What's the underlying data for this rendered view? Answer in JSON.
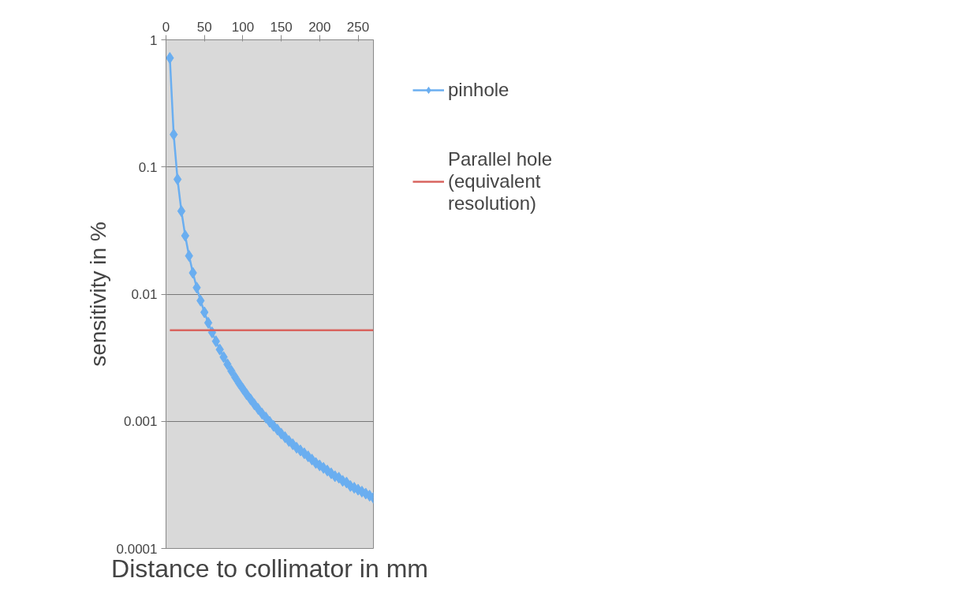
{
  "chart_data": {
    "type": "line",
    "xlabel": "Distance to collimator in mm",
    "ylabel": "sensitivity in %",
    "xlim": [
      0,
      270
    ],
    "xticks": [
      0,
      50,
      100,
      150,
      200,
      250
    ],
    "ylim": [
      0.0001,
      1
    ],
    "yticks": [
      0.0001,
      0.001,
      0.01,
      0.1,
      1
    ],
    "log": "y",
    "grid": "y",
    "legend": "right",
    "marker": "diamond",
    "line_style": "solid",
    "series": [
      {
        "name": "pinhole",
        "color": "#6aaef0",
        "x": [
          5,
          10,
          15,
          20,
          25,
          30,
          35,
          40,
          45,
          50,
          55,
          60,
          65,
          70,
          75,
          80,
          85,
          90,
          95,
          100,
          105,
          110,
          115,
          120,
          125,
          130,
          135,
          140,
          145,
          150,
          155,
          160,
          165,
          170,
          175,
          180,
          185,
          190,
          195,
          200,
          205,
          210,
          215,
          220,
          225,
          230,
          235,
          240,
          245,
          250,
          255,
          260,
          265,
          270
        ],
        "values": [
          0.72,
          0.18,
          0.08,
          0.045,
          0.0288,
          0.02,
          0.0147,
          0.01125,
          0.00889,
          0.0072,
          0.00595,
          0.005,
          0.00426,
          0.00367,
          0.0032,
          0.00281,
          0.00249,
          0.00222,
          0.00199,
          0.0018,
          0.00163,
          0.00149,
          0.00136,
          0.00125,
          0.00115,
          0.00107,
          0.00099,
          0.00092,
          0.00086,
          0.0008,
          0.00075,
          0.0007,
          0.00066,
          0.00062,
          0.00059,
          0.00056,
          0.00053,
          0.0005,
          0.00047,
          0.00045,
          0.00043,
          0.00041,
          0.00039,
          0.00037,
          0.00036,
          0.00034,
          0.00033,
          0.00031,
          0.0003,
          0.00029,
          0.00028,
          0.00027,
          0.00026,
          0.00025
        ]
      },
      {
        "name": "Parallel hole\n(equivalent\nresolution)",
        "color": "#d9645f",
        "marker": "none",
        "x": [
          5,
          270
        ],
        "values": [
          0.0052,
          0.0052
        ]
      }
    ]
  }
}
